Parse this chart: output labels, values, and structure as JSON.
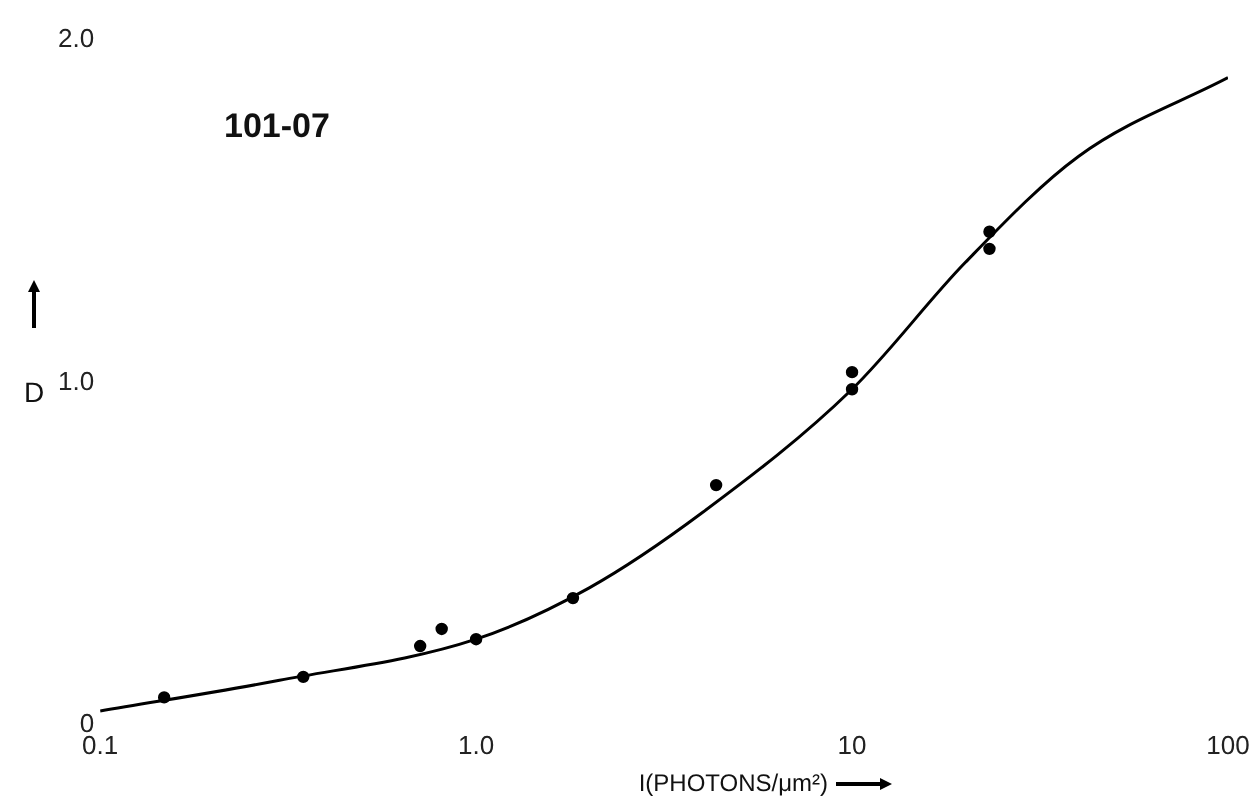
{
  "chart_data": {
    "type": "scatter",
    "xlabel": "I(PHOTONS/μm²)",
    "ylabel": "D",
    "annotations": [
      "101-07"
    ],
    "log": "x",
    "grid": false,
    "legend": false,
    "marker": "circle",
    "xlim": [
      0.1,
      100
    ],
    "xticks": [
      {
        "value": 0.1,
        "label": "0.1"
      },
      {
        "value": 1,
        "label": "1.0"
      },
      10,
      100
    ],
    "ylim": [
      0,
      2
    ],
    "yticks": [
      0,
      {
        "value": 1,
        "label": "1.0"
      },
      {
        "value": 2,
        "label": "2.0"
      }
    ],
    "series": [
      {
        "type": "scatter",
        "color": "#000000",
        "x": [
          0.148,
          0.347,
          0.71,
          0.81,
          1.0,
          1.81,
          4.35,
          10,
          10,
          23.2,
          23.2
        ],
        "values": [
          0.08,
          0.14,
          0.23,
          0.28,
          0.25,
          0.37,
          0.7,
          1.03,
          0.98,
          1.39,
          1.44
        ]
      },
      {
        "type": "line",
        "color": "#000000",
        "marker": "none",
        "x": [
          0.1,
          0.3,
          1,
          2,
          4,
          10,
          20,
          40,
          100
        ],
        "values": [
          0.04,
          0.13,
          0.25,
          0.4,
          0.62,
          0.98,
          1.35,
          1.66,
          1.89
        ]
      }
    ]
  }
}
